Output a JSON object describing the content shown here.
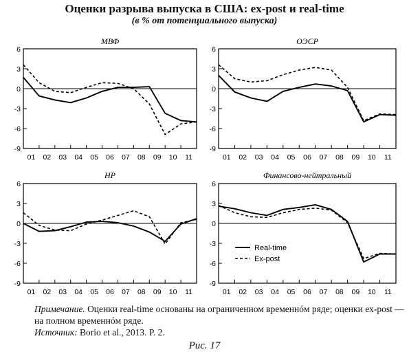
{
  "title": "Оценки разрыва выпуска в США: ex-post и real-time",
  "subtitle": "(в % от потенциального выпуска)",
  "legend": {
    "realtime": "Real-time",
    "expost": "Ex-post"
  },
  "note": {
    "label": "Примечание.",
    "text": "Оценки real-time основаны на ограниченном временнóм ряде; оценки ex-post — на полном временнóм ряде.",
    "source_label": "Источник:",
    "source_text": "Borio et al., 2013. P. 2."
  },
  "figure_caption": "Рис. 17",
  "chart_data": [
    {
      "type": "line",
      "title": "МВФ",
      "x": [
        0,
        1,
        2,
        3,
        4,
        5,
        6,
        7,
        8,
        9,
        10,
        11
      ],
      "xticks": [
        "01",
        "02",
        "03",
        "04",
        "05",
        "06",
        "07",
        "08",
        "09",
        "10",
        "11"
      ],
      "ylim": [
        -9,
        6
      ],
      "yticks": [
        6,
        3,
        0,
        -3,
        -6,
        -9
      ],
      "series": [
        {
          "name": "Real-time",
          "style": "solid",
          "values": [
            1.7,
            -1.1,
            -1.7,
            -2.1,
            -1.4,
            -0.4,
            0.2,
            0.2,
            0.3,
            -3.7,
            -4.8,
            -5.0
          ]
        },
        {
          "name": "Ex-post",
          "style": "dashed",
          "values": [
            3.6,
            0.9,
            -0.4,
            -0.6,
            0.2,
            0.9,
            0.8,
            0.0,
            -2.3,
            -6.9,
            -5.3,
            -5.0
          ]
        }
      ]
    },
    {
      "type": "line",
      "title": "ОЭСР",
      "x": [
        0,
        1,
        2,
        3,
        4,
        5,
        6,
        7,
        8,
        9,
        10,
        11
      ],
      "xticks": [
        "01",
        "02",
        "03",
        "04",
        "05",
        "06",
        "07",
        "08",
        "09",
        "10",
        "11"
      ],
      "ylim": [
        -9,
        6
      ],
      "yticks": [
        6,
        3,
        0,
        -3,
        -6,
        -9
      ],
      "series": [
        {
          "name": "Real-time",
          "style": "solid",
          "values": [
            2.0,
            -0.5,
            -1.4,
            -1.9,
            -0.4,
            0.2,
            0.7,
            0.4,
            -0.3,
            -5.0,
            -3.9,
            -4.0
          ]
        },
        {
          "name": "Ex-post",
          "style": "dashed",
          "values": [
            3.6,
            1.5,
            1.0,
            1.2,
            2.1,
            2.8,
            3.2,
            2.8,
            0.2,
            -4.8,
            -3.8,
            -3.9
          ]
        }
      ]
    },
    {
      "type": "line",
      "title": "НР",
      "x": [
        0,
        1,
        2,
        3,
        4,
        5,
        6,
        7,
        8,
        9,
        10,
        11
      ],
      "xticks": [
        "01",
        "02",
        "03",
        "04",
        "05",
        "06",
        "07",
        "08",
        "09",
        "10",
        "11"
      ],
      "ylim": [
        -9,
        6
      ],
      "yticks": [
        6,
        3,
        0,
        -3,
        -6,
        -9
      ],
      "series": [
        {
          "name": "Real-time",
          "style": "solid",
          "values": [
            0.0,
            -1.2,
            -1.1,
            -0.5,
            0.2,
            0.3,
            0.1,
            -0.4,
            -1.3,
            -2.7,
            -0.1,
            0.7
          ]
        },
        {
          "name": "Ex-post",
          "style": "dashed",
          "values": [
            1.6,
            -0.3,
            -1.0,
            -1.1,
            -0.1,
            0.5,
            1.2,
            1.9,
            1.0,
            -3.1,
            0.1,
            0.6
          ]
        }
      ]
    },
    {
      "type": "line",
      "title": "Финансово-нейтральный",
      "x": [
        0,
        1,
        2,
        3,
        4,
        5,
        6,
        7,
        8,
        9,
        10,
        11
      ],
      "xticks": [
        "01",
        "02",
        "03",
        "04",
        "05",
        "06",
        "07",
        "08",
        "09",
        "10",
        "11"
      ],
      "ylim": [
        -9,
        6
      ],
      "yticks": [
        6,
        3,
        0,
        -3,
        -6,
        -9
      ],
      "series": [
        {
          "name": "Real-time",
          "style": "solid",
          "values": [
            2.6,
            2.2,
            1.6,
            1.2,
            2.1,
            2.4,
            2.8,
            2.1,
            0.3,
            -5.8,
            -4.6,
            -4.6
          ]
        },
        {
          "name": "Ex-post",
          "style": "dashed",
          "values": [
            2.7,
            1.6,
            1.0,
            0.9,
            1.6,
            2.1,
            2.3,
            2.0,
            0.1,
            -5.3,
            -4.5,
            -4.6
          ]
        }
      ]
    }
  ]
}
